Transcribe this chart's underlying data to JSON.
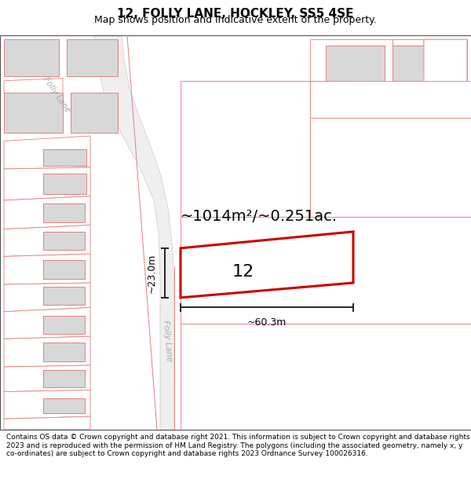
{
  "title": "12, FOLLY LANE, HOCKLEY, SS5 4SE",
  "subtitle": "Map shows position and indicative extent of the property.",
  "footer": "Contains OS data © Crown copyright and database right 2021. This information is subject to Crown copyright and database rights 2023 and is reproduced with the permission of HM Land Registry. The polygons (including the associated geometry, namely x, y co-ordinates) are subject to Crown copyright and database rights 2023 Ordnance Survey 100026316.",
  "area_label": "~1014m²/~0.251ac.",
  "width_label": "~60.3m",
  "height_label": "~23.0m",
  "number_label": "12",
  "road_label": "Folly Lane",
  "road_label2": "Folly Lane",
  "bg_color": "#ffffff",
  "map_bg": "#ffffff",
  "building_fill": "#d8d8d8",
  "building_stroke": "#e08080",
  "highlight_fill": "#ffffff",
  "highlight_stroke": "#cc0000",
  "road_color": "#efefef",
  "road_stroke": "#cccccc",
  "plot_line_color": "#e08080",
  "title_fontsize": 11,
  "subtitle_fontsize": 9,
  "footer_fontsize": 6.5
}
